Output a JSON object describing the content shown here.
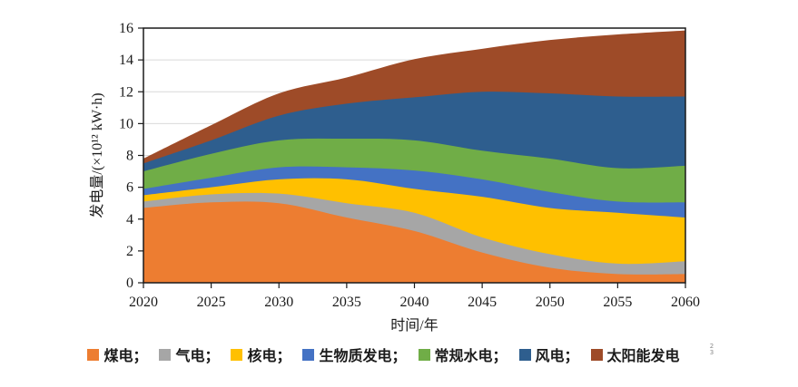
{
  "chart_data": {
    "type": "area",
    "stacked": true,
    "title": "",
    "xlabel": "时间/年",
    "ylabel": "发电量/(×10¹² kW·h)",
    "xlim": [
      2020,
      2060
    ],
    "ylim": [
      0,
      16
    ],
    "x_ticks": [
      2020,
      2025,
      2030,
      2035,
      2040,
      2045,
      2050,
      2055,
      2060
    ],
    "y_ticks": [
      0,
      2,
      4,
      6,
      8,
      10,
      12,
      14,
      16
    ],
    "grid": "horizontal",
    "gridline_color": "#d9d9d9",
    "frame_color": "#1a1a1a",
    "legend_position": "bottom",
    "x": [
      2020,
      2025,
      2030,
      2035,
      2040,
      2045,
      2050,
      2055,
      2060
    ],
    "series": [
      {
        "name": "煤电",
        "label": "煤电；",
        "color": "#ED7D31",
        "values": [
          4.7,
          5.05,
          5.0,
          4.1,
          3.25,
          1.9,
          0.95,
          0.55,
          0.55
        ]
      },
      {
        "name": "气电",
        "label": "气电；",
        "color": "#A6A6A6",
        "values": [
          0.4,
          0.5,
          0.6,
          0.9,
          1.15,
          0.95,
          0.85,
          0.65,
          0.8
        ]
      },
      {
        "name": "核电",
        "label": "核电；",
        "color": "#FFC000",
        "values": [
          0.4,
          0.45,
          0.9,
          1.5,
          1.5,
          2.55,
          2.9,
          3.2,
          2.75
        ]
      },
      {
        "name": "生物质发电",
        "label": "生物质发电；",
        "color": "#4472C4",
        "values": [
          0.4,
          0.6,
          0.75,
          0.75,
          1.15,
          1.1,
          1.0,
          0.7,
          0.95
        ]
      },
      {
        "name": "常规水电",
        "label": "常规水电；",
        "color": "#70AD47",
        "values": [
          1.1,
          1.5,
          1.7,
          1.8,
          1.9,
          1.8,
          2.1,
          2.1,
          2.3
        ]
      },
      {
        "name": "风电",
        "label": "风电；",
        "color": "#2E5E8E",
        "values": [
          0.5,
          0.85,
          1.55,
          2.2,
          2.7,
          3.7,
          4.1,
          4.5,
          4.35
        ]
      },
      {
        "name": "太阳能发电",
        "label": "太阳能发电",
        "color": "#9E4B28",
        "values": [
          0.3,
          0.95,
          1.4,
          1.65,
          2.4,
          2.7,
          3.35,
          3.9,
          4.15
        ]
      }
    ],
    "totals": [
      7.8,
      9.9,
      11.9,
      12.9,
      14.05,
      14.7,
      15.25,
      15.6,
      15.85
    ]
  },
  "artifact": {
    "line1": "2",
    "line2": "3"
  }
}
